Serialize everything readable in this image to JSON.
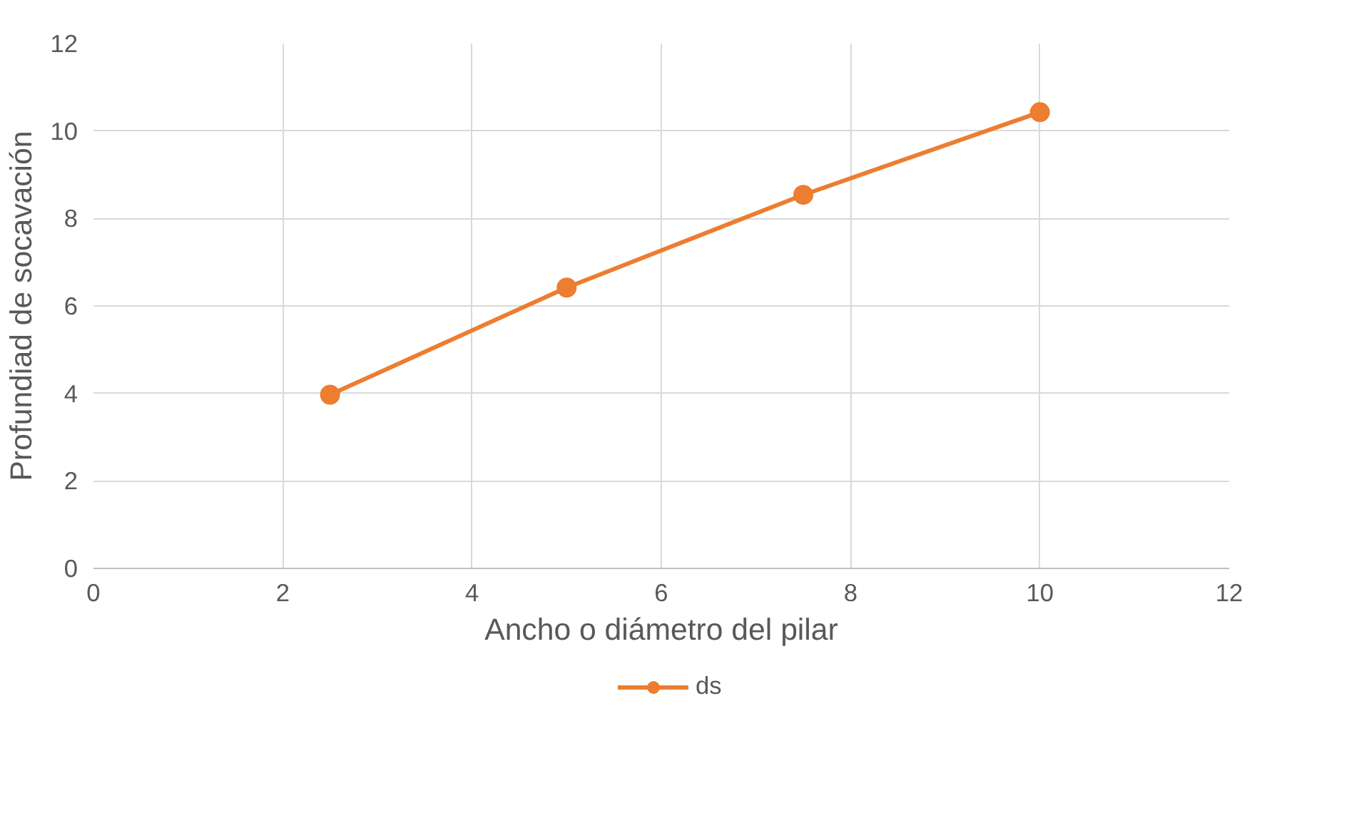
{
  "chart_data": {
    "type": "line",
    "xlabel": "Ancho o diámetro del pilar",
    "ylabel": "Profundiad de socavación",
    "x": [
      2.5,
      5,
      7.5,
      10
    ],
    "series": [
      {
        "name": "ds",
        "color": "#ed7d31",
        "values": [
          3.97,
          6.42,
          8.54,
          10.43
        ]
      }
    ],
    "xlim": [
      0,
      12
    ],
    "xticks": [
      0,
      2,
      4,
      6,
      8,
      10,
      12
    ],
    "ylim": [
      0,
      12
    ],
    "yticks": [
      0,
      2,
      4,
      6,
      8,
      10,
      12
    ],
    "grid": true,
    "legend": "bottom",
    "marker": "circle",
    "line_style": "solid"
  }
}
